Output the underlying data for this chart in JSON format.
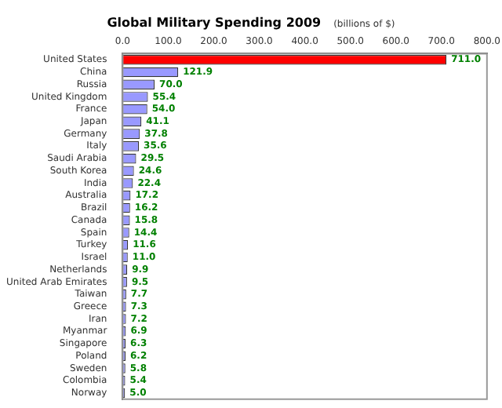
{
  "chart_data": {
    "type": "bar",
    "orientation": "horizontal",
    "title": "Global Military Spending   2009",
    "subtitle": "(billions of $)",
    "categories": [
      "United States",
      "China",
      "Russia",
      "United Kingdom",
      "France",
      "Japan",
      "Germany",
      "Italy",
      "Saudi Arabia",
      "South Korea",
      "India",
      "Australia",
      "Brazil",
      "Canada",
      "Spain",
      "Turkey",
      "Israel",
      "Netherlands",
      "United Arab Emirates",
      "Taiwan",
      "Greece",
      "Iran",
      "Myanmar",
      "Singapore",
      "Poland",
      "Sweden",
      "Colombia",
      "Norway"
    ],
    "values": [
      711.0,
      121.9,
      70.0,
      55.4,
      54.0,
      41.1,
      37.8,
      35.6,
      29.5,
      24.6,
      22.4,
      17.2,
      16.2,
      15.8,
      14.4,
      11.6,
      11.0,
      9.9,
      9.5,
      7.7,
      7.3,
      7.2,
      6.9,
      6.3,
      6.2,
      5.8,
      5.4,
      5.0
    ],
    "value_labels": [
      "711.0",
      "121.9",
      "70.0",
      "55.4",
      "54.0",
      "41.1",
      "37.8",
      "35.6",
      "29.5",
      "24.6",
      "22.4",
      "17.2",
      "16.2",
      "15.8",
      "14.4",
      "11.6",
      "11.0",
      "9.9",
      "9.5",
      "7.7",
      "7.3",
      "7.2",
      "6.9",
      "6.3",
      "6.2",
      "5.8",
      "5.4",
      "5.0"
    ],
    "colors": [
      "#ff0000",
      "#9999ff",
      "#9999ff",
      "#9999ff",
      "#9999ff",
      "#9999ff",
      "#9999ff",
      "#9999ff",
      "#9999ff",
      "#9999ff",
      "#9999ff",
      "#9999ff",
      "#9999ff",
      "#9999ff",
      "#9999ff",
      "#9999ff",
      "#9999ff",
      "#9999ff",
      "#9999ff",
      "#9999ff",
      "#9999ff",
      "#9999ff",
      "#9999ff",
      "#9999ff",
      "#9999ff",
      "#9999ff",
      "#9999ff",
      "#9999ff"
    ],
    "xlim": [
      0,
      800
    ],
    "xticks": [
      {
        "value": 0,
        "label": "0.0"
      },
      {
        "value": 100,
        "label": "100.0"
      },
      {
        "value": 200,
        "label": "200.0"
      },
      {
        "value": 300,
        "label": "300.0"
      },
      {
        "value": 400,
        "label": "400.0"
      },
      {
        "value": 500,
        "label": "500.0"
      },
      {
        "value": 600,
        "label": "600.0"
      },
      {
        "value": 700,
        "label": "700.0"
      },
      {
        "value": 800,
        "label": "800.0"
      }
    ],
    "grid": false,
    "legend": false
  }
}
